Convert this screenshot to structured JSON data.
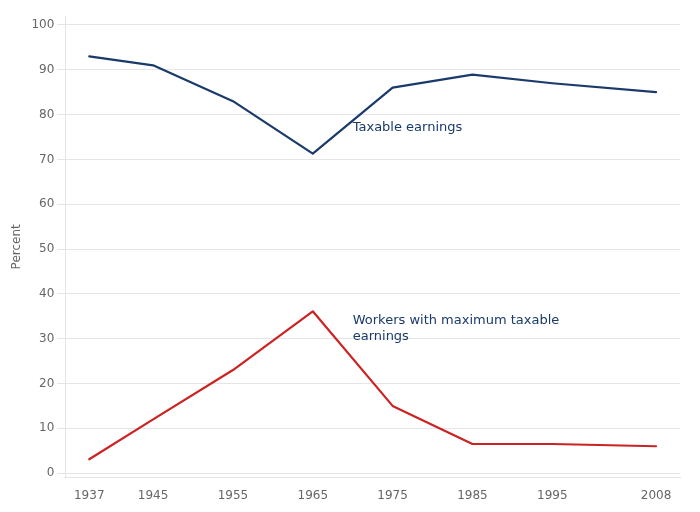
{
  "chart_data": {
    "type": "line",
    "x": [
      1937,
      1945,
      1955,
      1965,
      1975,
      1985,
      1995,
      2008
    ],
    "series": [
      {
        "color": "#1a3a6b",
        "values": [
          93.0,
          91.0,
          83.0,
          71.3,
          86.0,
          88.9,
          87.0,
          85.0
        ]
      },
      {
        "color": "#cc2222",
        "values": [
          3.1,
          12.0,
          23.0,
          36.1,
          15.0,
          6.5,
          6.5,
          6.0
        ]
      }
    ],
    "ylabel": "Percent",
    "xlim": [
      1934,
      2011
    ],
    "xticks": [
      1937,
      1945,
      1955,
      1965,
      1975,
      1985,
      1995,
      2008
    ],
    "ylim": [
      -1,
      102
    ],
    "yticks": [
      0,
      10,
      20,
      30,
      40,
      50,
      60,
      70,
      80,
      90,
      100
    ],
    "grid": "y",
    "annotations": [
      {
        "text": "Taxable earnings",
        "x": 1970,
        "y": 78.5,
        "color": "#1a3a6b"
      },
      {
        "text": "Workers with maximum taxable\nearnings",
        "x": 1970,
        "y": 35.5,
        "color": "#1a3a6b"
      }
    ]
  }
}
